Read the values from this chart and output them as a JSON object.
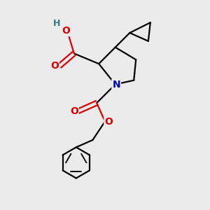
{
  "background_color": "#ebebeb",
  "atom_colors": {
    "O": "#dd0000",
    "N": "#0000bb",
    "H": "#337777",
    "C": "#000000"
  },
  "bond_color": "#000000",
  "bond_width": 1.6,
  "figsize": [
    3.0,
    3.0
  ],
  "dpi": 100,
  "xlim": [
    0,
    10
  ],
  "ylim": [
    0,
    10
  ]
}
